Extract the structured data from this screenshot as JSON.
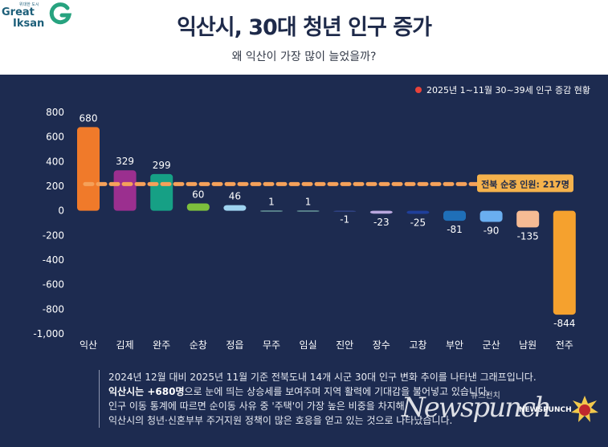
{
  "logo": {
    "small": "위대한 도시",
    "line1": "Great",
    "line2": "Iksan",
    "icon": "iksan-g-logo-icon"
  },
  "header": {
    "title": "익산시, 30대 청년 인구 증가",
    "subtitle": "왜 익산이 가장 많이 늘었을까?"
  },
  "legend": {
    "label": "2025년 1~11월 30~39세 인구 증감 현황",
    "color": "#e8433a"
  },
  "chart_data": {
    "type": "bar",
    "categories": [
      "익산",
      "김제",
      "완주",
      "순창",
      "정읍",
      "무주",
      "임실",
      "진안",
      "장수",
      "고창",
      "부안",
      "군산",
      "남원",
      "전주"
    ],
    "values": [
      680,
      329,
      299,
      60,
      46,
      1,
      1,
      -1,
      -23,
      -25,
      -81,
      -90,
      -135,
      -844
    ],
    "data_labels": [
      "680",
      "329",
      "299",
      "60",
      "46",
      "1",
      "1",
      "-1",
      "-23",
      "-25",
      "-81",
      "-90",
      "-135",
      "-844"
    ],
    "colors": [
      "#f07a2a",
      "#9b2f8f",
      "#16a085",
      "#7dbf3c",
      "#9fd3f0",
      "#8fd0c0",
      "#8fd0c0",
      "#3a4fa0",
      "#b9a7de",
      "#1f3f9a",
      "#1f6fb8",
      "#6aaef0",
      "#f6bb94",
      "#f5a12e"
    ],
    "yticks": [
      800,
      600,
      400,
      200,
      0,
      -200,
      -400,
      -600,
      -800,
      -1000
    ],
    "ytick_labels": [
      "800",
      "600",
      "400",
      "200",
      "0",
      "-200",
      "-400",
      "-600",
      "-800",
      "-1,000"
    ],
    "ylim": [
      -1000,
      800
    ],
    "grid": false,
    "reference_line": {
      "value": 217,
      "label": "전북 순증 인원: 217명",
      "color": "#f5a15a"
    },
    "title": "",
    "xlabel": "",
    "ylabel": ""
  },
  "notes": {
    "line1": "2024년 12월 대비 2025년 11월 기준 전북도내 14개 시군 30대 인구 변화 추이를 나타낸 그래프입니다.",
    "line2_bold": "익산시는 +680명",
    "line2_rest": "으로 눈에 띄는 상승세를 보여주며 지역 활력에 기대감을 불어넣고 있습니다.",
    "line3": "인구 이동 통계에 따르면 순이동 사유 중 '주택'이 가장 높은 비중을 차지해",
    "line4": "익산시의 청년·신혼부부 주거지원 정책이 많은 호응을 얻고 있는 것으로 나타났습니다."
  },
  "watermark": {
    "news": "Newspunch",
    "korean": "뉴스펀치",
    "brand": "NEWSPUNCH"
  }
}
